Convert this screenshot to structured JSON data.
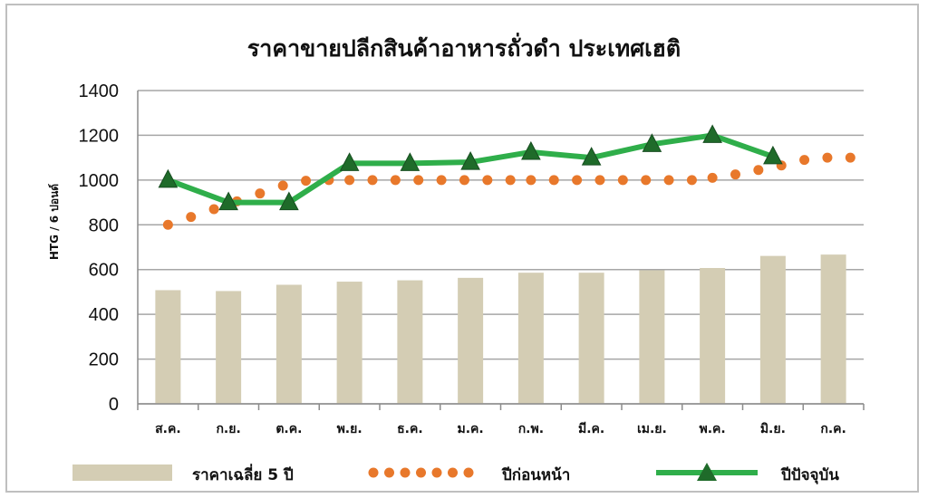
{
  "chart_data": {
    "type": "bar",
    "title": "ราคาขายปลีกสินค้าอาหารถั่วดำ ประเทศเฮติ",
    "ylabel": "HTG / 6 ปอนด์",
    "xlabel": "",
    "ylim": [
      0,
      1400
    ],
    "yticks": [
      0,
      200,
      400,
      600,
      800,
      1000,
      1200,
      1400
    ],
    "grid": true,
    "legend_position": "bottom",
    "categories": [
      "ส.ค.",
      "ก.ย.",
      "ต.ค.",
      "พ.ย.",
      "ธ.ค.",
      "ม.ค.",
      "ก.พ.",
      "มี.ค.",
      "เม.ย.",
      "พ.ค.",
      "มิ.ย.",
      "ก.ค."
    ],
    "series": [
      {
        "name": "ราคาเฉลี่ย 5 ปี",
        "type": "bar",
        "color": "#d4cdb4",
        "values": [
          508,
          504,
          532,
          546,
          552,
          563,
          586,
          586,
          597,
          607,
          661,
          667
        ]
      },
      {
        "name": "ปีก่อนหน้า",
        "type": "line-dotted",
        "color": "#e8782b",
        "x": [
          0,
          0.38,
          0.76,
          1.14,
          1.52,
          1.9,
          2.28,
          2.66,
          3,
          3.38,
          3.76,
          4.14,
          4.52,
          4.9,
          5.28,
          5.66,
          6,
          6.38,
          6.76,
          7.14,
          7.52,
          7.9,
          8.28,
          8.66,
          9,
          9.38,
          9.76,
          10.14,
          10.52,
          10.9,
          11.28
        ],
        "values": [
          800,
          835,
          870,
          905,
          940,
          975,
          997,
          1000,
          1000,
          1000,
          1000,
          1000,
          1000,
          1000,
          1000,
          1000,
          1000,
          1000,
          1000,
          1000,
          1000,
          1000,
          1000,
          1000,
          1010,
          1025,
          1045,
          1065,
          1090,
          1100,
          1100
        ]
      },
      {
        "name": "ปีปัจจุบัน",
        "type": "line",
        "color": "#2fae4a",
        "marker_color": "#1f6b2a",
        "values": [
          1000,
          900,
          900,
          1075,
          1075,
          1080,
          1125,
          1100,
          1160,
          1200,
          1105,
          null
        ]
      }
    ]
  }
}
